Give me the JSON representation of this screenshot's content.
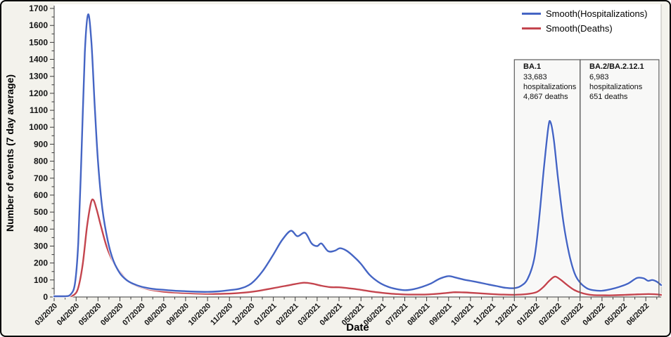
{
  "figure": {
    "background": "#f3f2ec",
    "plot_background": "#ffffff",
    "border_color": "#000000",
    "axis_color": "#3a3a3a"
  },
  "legend": {
    "items": [
      {
        "label": "Smooth(Hospitalizations)",
        "color": "#4565c4"
      },
      {
        "label": "Smooth(Deaths)",
        "color": "#c4454e"
      }
    ]
  },
  "chart_data": {
    "type": "line",
    "title": "",
    "xlabel": "Date",
    "ylabel": "Number of events (7 day average)",
    "ylim": [
      0,
      1700
    ],
    "y_ticks": [
      0,
      100,
      200,
      300,
      400,
      500,
      600,
      700,
      800,
      900,
      1000,
      1100,
      1200,
      1300,
      1400,
      1500,
      1600,
      1700
    ],
    "x_tick_labels": [
      "03/2020",
      "04/2020",
      "05/2020",
      "06/2020",
      "07/2020",
      "08/2020",
      "09/2020",
      "10/2020",
      "11/2020",
      "12/2020",
      "01/2021",
      "02/2021",
      "03/2021",
      "04/2021",
      "05/2021",
      "06/2021",
      "07/2021",
      "08/2021",
      "09/2021",
      "10/2021",
      "11/2021",
      "12/2021",
      "01/2022",
      "02/2022",
      "03/2022",
      "04/2022",
      "05/2022",
      "06/2022"
    ],
    "x_unit": "months since 03/2020",
    "x_max_month": 27.7,
    "grid": false,
    "legend_position": "top-right",
    "series": [
      {
        "name": "Smooth(Hospitalizations)",
        "color": "#4565c4",
        "points": [
          [
            0,
            0
          ],
          [
            0.5,
            3
          ],
          [
            0.75,
            15
          ],
          [
            0.95,
            80
          ],
          [
            1.1,
            320
          ],
          [
            1.25,
            850
          ],
          [
            1.4,
            1440
          ],
          [
            1.55,
            1665
          ],
          [
            1.7,
            1500
          ],
          [
            1.85,
            1130
          ],
          [
            2.0,
            800
          ],
          [
            2.2,
            520
          ],
          [
            2.45,
            330
          ],
          [
            2.7,
            215
          ],
          [
            3.0,
            140
          ],
          [
            3.3,
            100
          ],
          [
            3.6,
            78
          ],
          [
            4.0,
            60
          ],
          [
            4.5,
            48
          ],
          [
            5.0,
            42
          ],
          [
            5.5,
            37
          ],
          [
            6.0,
            34
          ],
          [
            6.5,
            31
          ],
          [
            7.0,
            30
          ],
          [
            7.5,
            33
          ],
          [
            8.0,
            40
          ],
          [
            8.5,
            50
          ],
          [
            9.0,
            80
          ],
          [
            9.5,
            150
          ],
          [
            10.0,
            250
          ],
          [
            10.4,
            335
          ],
          [
            10.8,
            390
          ],
          [
            11.1,
            358
          ],
          [
            11.45,
            378
          ],
          [
            11.75,
            315
          ],
          [
            12.0,
            300
          ],
          [
            12.2,
            315
          ],
          [
            12.5,
            270
          ],
          [
            12.8,
            272
          ],
          [
            13.05,
            287
          ],
          [
            13.35,
            272
          ],
          [
            13.7,
            235
          ],
          [
            14.0,
            195
          ],
          [
            14.4,
            130
          ],
          [
            14.8,
            88
          ],
          [
            15.2,
            62
          ],
          [
            15.6,
            47
          ],
          [
            16.0,
            40
          ],
          [
            16.4,
            46
          ],
          [
            16.8,
            60
          ],
          [
            17.2,
            80
          ],
          [
            17.6,
            108
          ],
          [
            18.0,
            123
          ],
          [
            18.3,
            115
          ],
          [
            18.7,
            102
          ],
          [
            19.0,
            95
          ],
          [
            19.4,
            85
          ],
          [
            19.8,
            74
          ],
          [
            20.2,
            64
          ],
          [
            20.6,
            54
          ],
          [
            21.0,
            52
          ],
          [
            21.3,
            65
          ],
          [
            21.6,
            105
          ],
          [
            21.9,
            220
          ],
          [
            22.1,
            420
          ],
          [
            22.35,
            760
          ],
          [
            22.55,
            1000
          ],
          [
            22.65,
            1030
          ],
          [
            22.8,
            930
          ],
          [
            23.0,
            690
          ],
          [
            23.25,
            430
          ],
          [
            23.5,
            255
          ],
          [
            23.75,
            140
          ],
          [
            24.0,
            85
          ],
          [
            24.3,
            52
          ],
          [
            24.6,
            40
          ],
          [
            25.0,
            37
          ],
          [
            25.4,
            46
          ],
          [
            25.8,
            60
          ],
          [
            26.2,
            80
          ],
          [
            26.6,
            112
          ],
          [
            26.9,
            110
          ],
          [
            27.1,
            95
          ],
          [
            27.3,
            100
          ],
          [
            27.5,
            90
          ],
          [
            27.7,
            70
          ]
        ]
      },
      {
        "name": "Smooth(Deaths)",
        "color": "#c4454e",
        "points": [
          [
            0,
            0
          ],
          [
            0.6,
            2
          ],
          [
            0.9,
            12
          ],
          [
            1.1,
            55
          ],
          [
            1.3,
            190
          ],
          [
            1.5,
            415
          ],
          [
            1.68,
            555
          ],
          [
            1.8,
            570
          ],
          [
            1.95,
            510
          ],
          [
            2.15,
            410
          ],
          [
            2.4,
            295
          ],
          [
            2.7,
            205
          ],
          [
            3.0,
            148
          ],
          [
            3.3,
            103
          ],
          [
            3.6,
            75
          ],
          [
            4.0,
            55
          ],
          [
            4.5,
            40
          ],
          [
            5.0,
            31
          ],
          [
            5.5,
            26
          ],
          [
            6.0,
            23
          ],
          [
            6.5,
            20
          ],
          [
            7.0,
            18
          ],
          [
            7.5,
            18
          ],
          [
            8.0,
            20
          ],
          [
            8.5,
            24
          ],
          [
            9.0,
            30
          ],
          [
            9.5,
            40
          ],
          [
            10.0,
            52
          ],
          [
            10.5,
            64
          ],
          [
            11.0,
            76
          ],
          [
            11.4,
            84
          ],
          [
            11.8,
            78
          ],
          [
            12.2,
            66
          ],
          [
            12.6,
            58
          ],
          [
            13.0,
            57
          ],
          [
            13.4,
            52
          ],
          [
            13.8,
            46
          ],
          [
            14.2,
            38
          ],
          [
            14.6,
            30
          ],
          [
            15.0,
            24
          ],
          [
            15.5,
            18
          ],
          [
            16.0,
            15
          ],
          [
            16.5,
            14
          ],
          [
            17.0,
            15
          ],
          [
            17.5,
            19
          ],
          [
            18.0,
            25
          ],
          [
            18.3,
            28
          ],
          [
            18.7,
            27
          ],
          [
            19.0,
            25
          ],
          [
            19.5,
            21
          ],
          [
            20.0,
            17
          ],
          [
            20.5,
            14
          ],
          [
            21.0,
            13
          ],
          [
            21.5,
            16
          ],
          [
            22.0,
            28
          ],
          [
            22.3,
            56
          ],
          [
            22.6,
            96
          ],
          [
            22.85,
            120
          ],
          [
            23.1,
            103
          ],
          [
            23.4,
            72
          ],
          [
            23.7,
            44
          ],
          [
            24.0,
            27
          ],
          [
            24.3,
            16
          ],
          [
            24.6,
            11
          ],
          [
            25.0,
            10
          ],
          [
            25.5,
            10
          ],
          [
            26.0,
            12
          ],
          [
            26.5,
            15
          ],
          [
            27.0,
            17
          ],
          [
            27.4,
            16
          ],
          [
            27.7,
            12
          ]
        ]
      }
    ],
    "annotations": [
      {
        "title": "BA.1",
        "line1": "33,683",
        "line2": "hospitalizations",
        "line3": "4,867 deaths",
        "from_month": 21,
        "to_month": 24,
        "from_label": "12/2021",
        "to_label": "03/2022"
      },
      {
        "title": "BA.2/BA.2.12.1",
        "line1": "6,983",
        "line2": "hospitalizations",
        "line3": "651 deaths",
        "from_month": 24,
        "to_month": 27.6,
        "from_label": "03/2022",
        "to_label": "06/2022"
      }
    ]
  }
}
